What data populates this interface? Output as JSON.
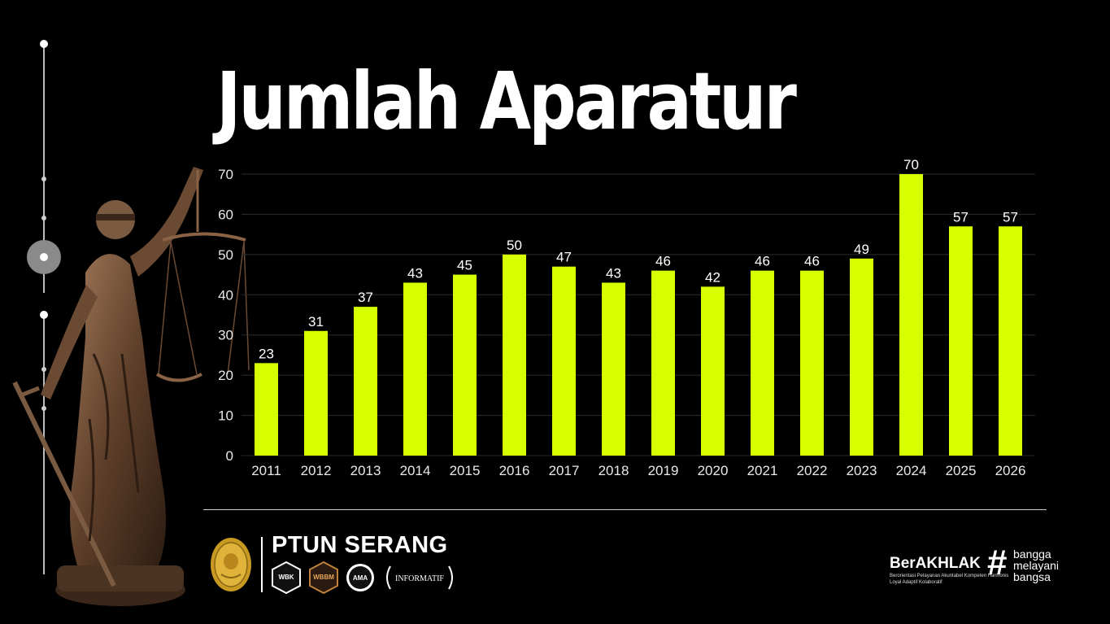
{
  "header": {
    "title": "Jumlah Aparatur"
  },
  "footer": {
    "org_name": "PTUN SERANG",
    "badges": [
      "WBK",
      "WBBM",
      "AMA",
      "INFORMATIF"
    ],
    "brand": {
      "main": "BerAKHLAK",
      "sub": "Berorientasi Pelayanan Akuntabel Kompeten Harmonis Loyal Adaptif Kolaboratif",
      "hash": "#",
      "tagline": [
        "bangga",
        "melayani",
        "bangsa"
      ]
    }
  },
  "chart_data": {
    "type": "bar",
    "title": "Jumlah Aparatur",
    "categories": [
      "2011",
      "2012",
      "2013",
      "2014",
      "2015",
      "2016",
      "2017",
      "2018",
      "2019",
      "2020",
      "2021",
      "2022",
      "2023",
      "2024",
      "2025",
      "2026"
    ],
    "values": [
      23,
      31,
      37,
      43,
      45,
      50,
      47,
      43,
      46,
      42,
      46,
      46,
      49,
      70,
      57,
      57
    ],
    "xlabel": "",
    "ylabel": "",
    "ylim": [
      0,
      70
    ],
    "yticks": [
      0,
      10,
      20,
      30,
      40,
      50,
      60,
      70
    ],
    "grid": true,
    "legend": "none",
    "colors": {
      "bar": "#d8ff00",
      "grid": "#2c2c2c",
      "background": "#000000"
    }
  },
  "colors": {
    "accent": "#d8ff00",
    "background": "#000000",
    "text": "#ffffff"
  }
}
